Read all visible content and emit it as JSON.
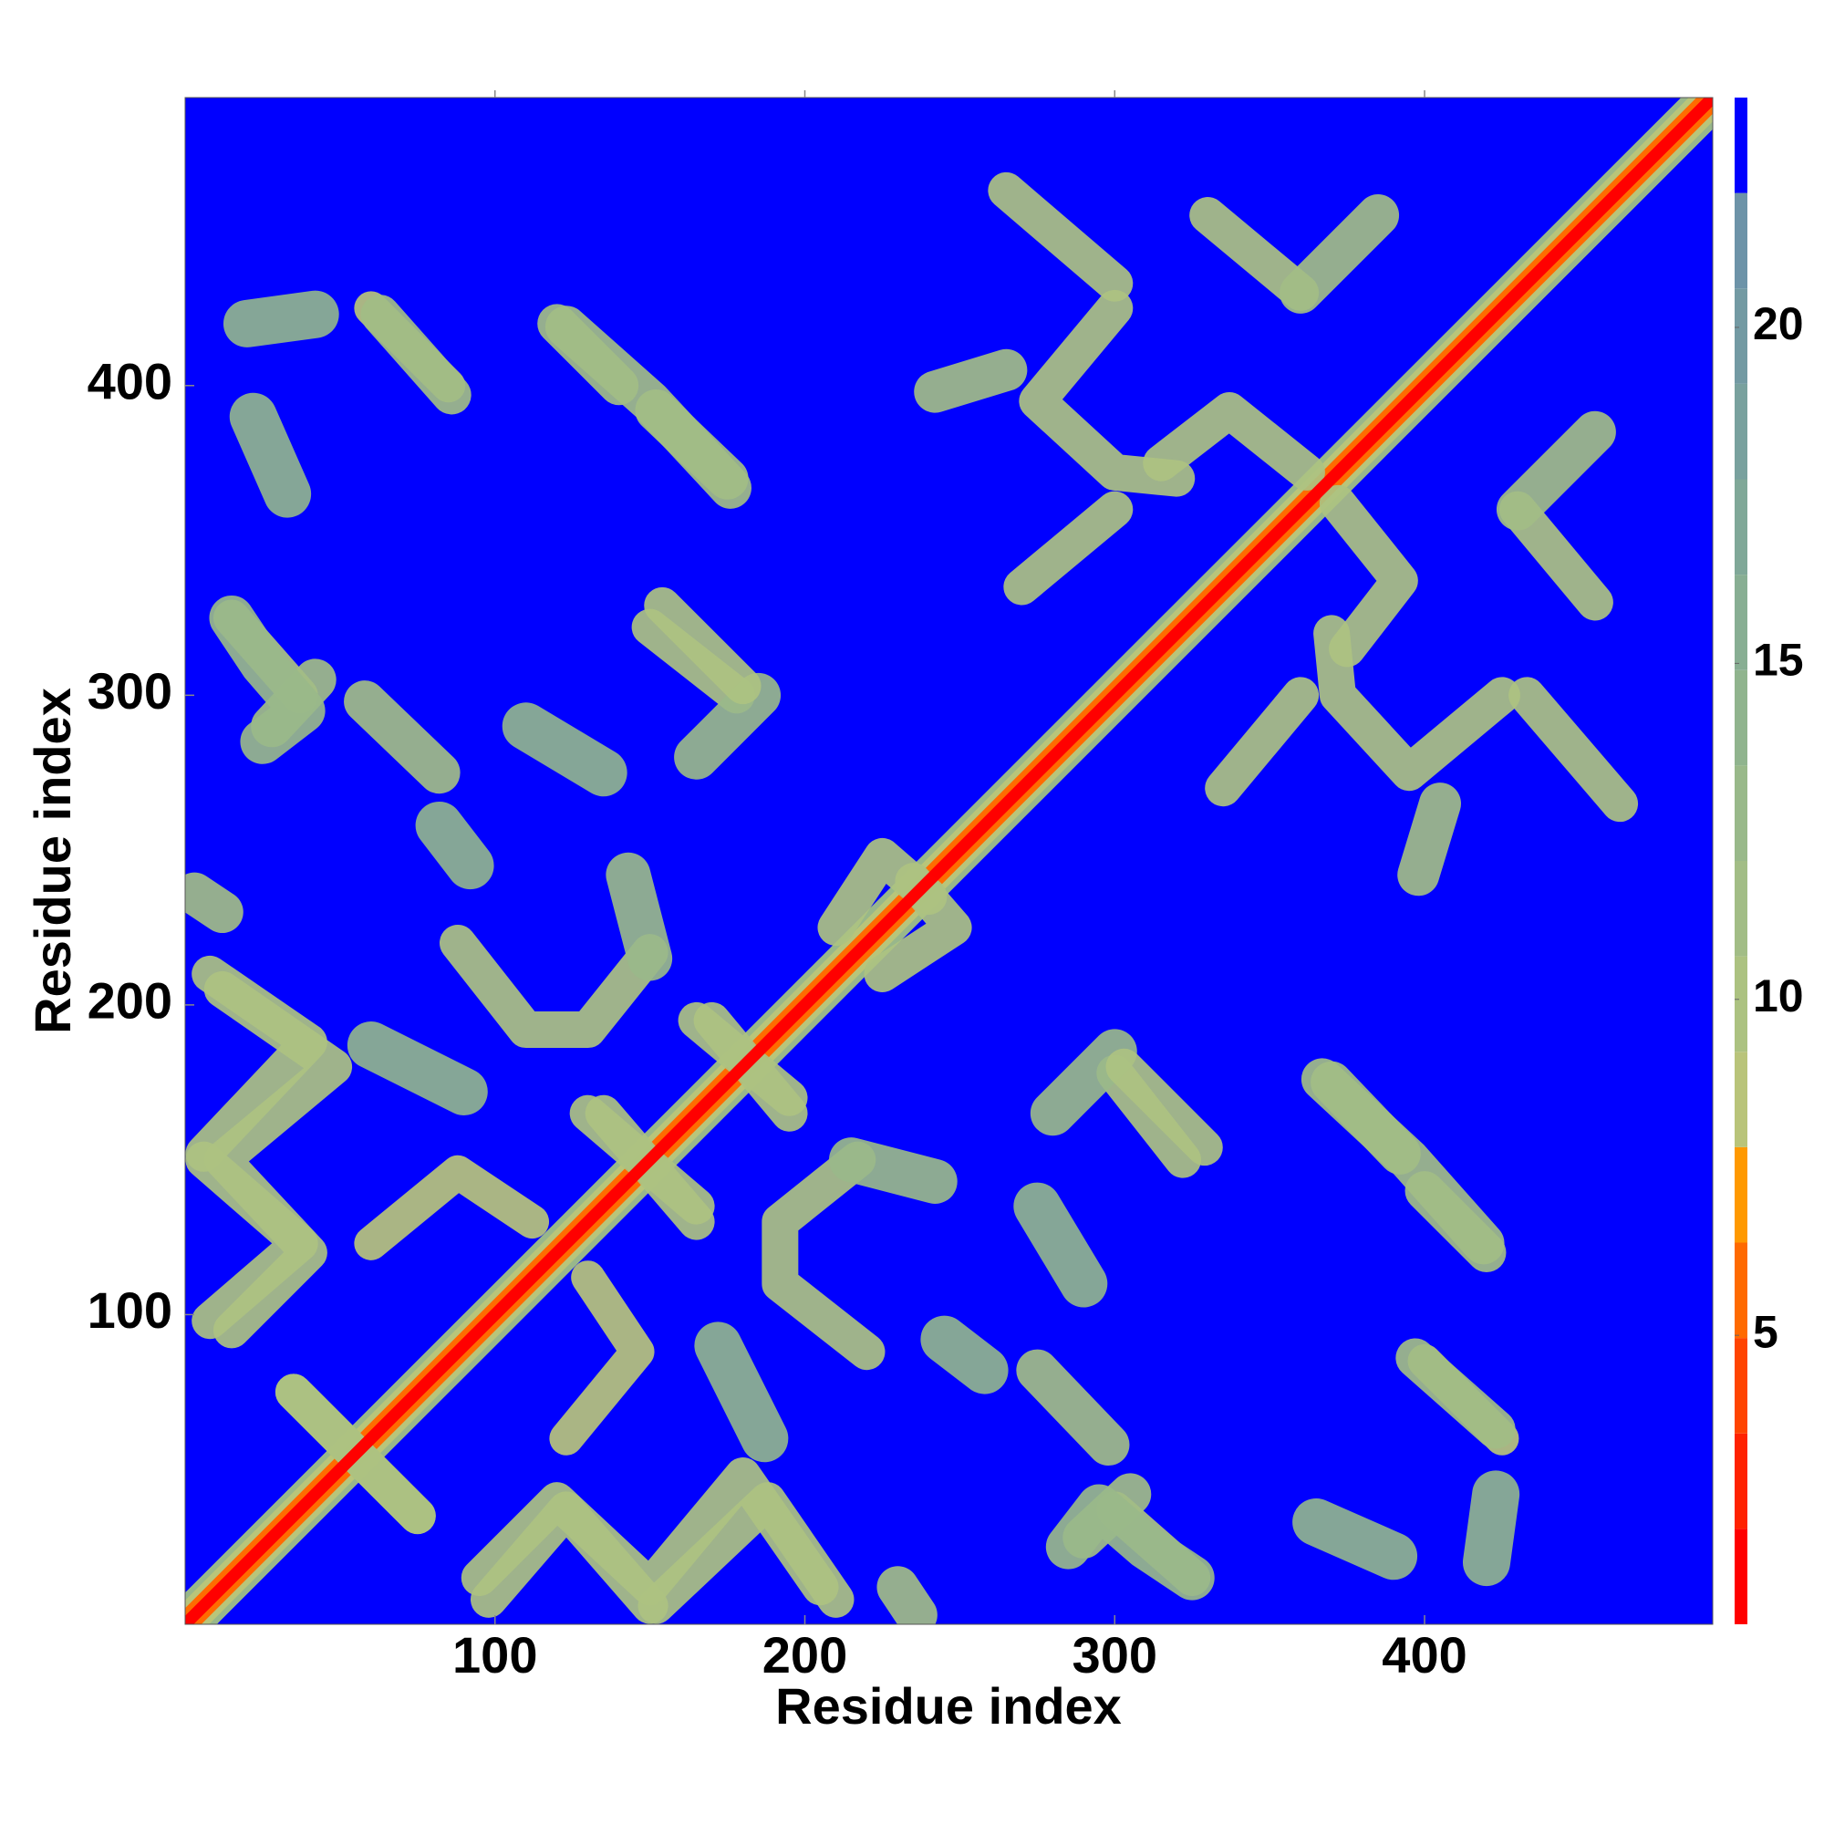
{
  "chart_data": {
    "type": "contact_map",
    "x_label": "Residue index",
    "y_label": "Residue index",
    "xlim": [
      0,
      493
    ],
    "ylim": [
      0,
      493
    ],
    "xticks": [
      100,
      200,
      300,
      400
    ],
    "yticks": [
      100,
      200,
      300,
      400
    ],
    "colorbar": {
      "lim": [
        0.7,
        23.42
      ],
      "ticks": [
        5,
        10,
        15,
        20
      ],
      "bounds": [
        0.7,
        2.12,
        3.54,
        4.96,
        6.38,
        7.8,
        9.22,
        10.64,
        12.06,
        13.48,
        14.9,
        16.32,
        17.74,
        19.16,
        20.58,
        22.0,
        23.42
      ],
      "colors": [
        "#ff0000",
        "#ff2200",
        "#ff4400",
        "#ff6a00",
        "#ff9900",
        "#b9c47a",
        "#acc281",
        "#a2bd86",
        "#99b98a",
        "#90b48e",
        "#88ae93",
        "#80a898",
        "#79a19e",
        "#739aa3",
        "#6d93a8",
        "#0000ff"
      ]
    },
    "features": [
      {
        "points": [
          [
            0,
            0
          ],
          [
            493,
            493
          ]
        ],
        "value": 13
      },
      {
        "points": [
          [
            0,
            0
          ],
          [
            493,
            493
          ]
        ],
        "value": 9
      },
      {
        "points": [
          [
            0,
            0
          ],
          [
            493,
            493
          ]
        ],
        "value": 5
      },
      {
        "points": [
          [
            8,
            98
          ],
          [
            37,
            123
          ],
          [
            6,
            150
          ]
        ],
        "value": 10
      },
      {
        "points": [
          [
            6,
            152
          ],
          [
            40,
            188
          ],
          [
            8,
            210
          ]
        ],
        "value": 10
      },
      {
        "points": [
          [
            3,
            236
          ],
          [
            12,
            230
          ]
        ],
        "value": 12
      },
      {
        "points": [
          [
            60,
            123
          ],
          [
            88,
            146
          ],
          [
            112,
            130
          ]
        ],
        "value": 9
      },
      {
        "points": [
          [
            60,
            187
          ],
          [
            90,
            172
          ]
        ],
        "value": 14
      },
      {
        "points": [
          [
            88,
            220
          ],
          [
            110,
            192
          ],
          [
            130,
            192
          ],
          [
            150,
            217
          ]
        ],
        "value": 10
      },
      {
        "points": [
          [
            82,
            258
          ],
          [
            92,
            245
          ]
        ],
        "value": 14
      },
      {
        "points": [
          [
            143,
            242
          ],
          [
            150,
            215
          ]
        ],
        "value": 13
      },
      {
        "points": [
          [
            15,
            325
          ],
          [
            37,
            300
          ]
        ],
        "value": 10
      },
      {
        "points": [
          [
            28,
            290
          ],
          [
            42,
            305
          ]
        ],
        "value": 12
      },
      {
        "points": [
          [
            58,
            298
          ],
          [
            82,
            275
          ]
        ],
        "value": 12
      },
      {
        "points": [
          [
            110,
            290
          ],
          [
            135,
            275
          ]
        ],
        "value": 14
      },
      {
        "points": [
          [
            150,
            322
          ],
          [
            178,
            300
          ]
        ],
        "value": 10
      },
      {
        "points": [
          [
            165,
            280
          ],
          [
            185,
            300
          ]
        ],
        "value": 13
      },
      {
        "points": [
          [
            20,
            420
          ],
          [
            42,
            423
          ]
        ],
        "value": 14
      },
      {
        "points": [
          [
            22,
            390
          ],
          [
            33,
            365
          ]
        ],
        "value": 14
      },
      {
        "points": [
          [
            60,
            425
          ],
          [
            85,
            400
          ]
        ],
        "value": 9
      },
      {
        "points": [
          [
            120,
            420
          ],
          [
            140,
            400
          ]
        ],
        "value": 11
      },
      {
        "points": [
          [
            152,
            392
          ],
          [
            175,
            370
          ]
        ],
        "value": 12
      },
      {
        "points": [
          [
            242,
            398
          ],
          [
            265,
            405
          ]
        ],
        "value": 12
      },
      {
        "points": [
          [
            265,
            463
          ],
          [
            300,
            433
          ]
        ],
        "value": 10
      },
      {
        "points": [
          [
            300,
            425
          ],
          [
            275,
            395
          ],
          [
            300,
            372
          ],
          [
            320,
            370
          ]
        ],
        "value": 10
      },
      {
        "points": [
          [
            315,
            375
          ],
          [
            337,
            392
          ],
          [
            362,
            372
          ]
        ],
        "value": 10
      },
      {
        "points": [
          [
            330,
            455
          ],
          [
            360,
            430
          ]
        ],
        "value": 10
      },
      {
        "points": [
          [
            360,
            430
          ],
          [
            385,
            455
          ]
        ],
        "value": 12
      },
      {
        "points": [
          [
            270,
            335
          ],
          [
            300,
            360
          ]
        ],
        "value": 10
      },
      {
        "points": [
          [
            210,
            225
          ],
          [
            225,
            248
          ],
          [
            240,
            235
          ]
        ],
        "value": 10
      },
      {
        "points": [
          [
            165,
            195
          ],
          [
            195,
            170
          ]
        ],
        "value": 10
      },
      {
        "points": [
          [
            130,
            165
          ],
          [
            165,
            135
          ]
        ],
        "value": 10
      },
      {
        "points": [
          [
            35,
            75
          ],
          [
            75,
            35
          ]
        ],
        "value": 10
      },
      {
        "points": [
          [
            95,
            15
          ],
          [
            120,
            40
          ],
          [
            150,
            12
          ],
          [
            180,
            48
          ],
          [
            205,
            12
          ]
        ],
        "value": 10
      },
      {
        "points": [
          [
            397,
            86
          ],
          [
            423,
            63
          ]
        ],
        "value": 11
      },
      {
        "points": [
          [
            285,
            25
          ],
          [
            295,
            38
          ],
          [
            310,
            25
          ],
          [
            325,
            15
          ]
        ],
        "value": 13
      },
      {
        "points": [
          [
            303,
            180
          ],
          [
            329,
            154
          ]
        ],
        "value": 10
      },
      {
        "points": [
          [
            367,
            176
          ],
          [
            395,
            150
          ],
          [
            419,
            123
          ]
        ],
        "value": 12
      },
      {
        "points": [
          [
            0,
            0
          ],
          [
            493,
            493
          ]
        ],
        "value": 1
      }
    ]
  }
}
